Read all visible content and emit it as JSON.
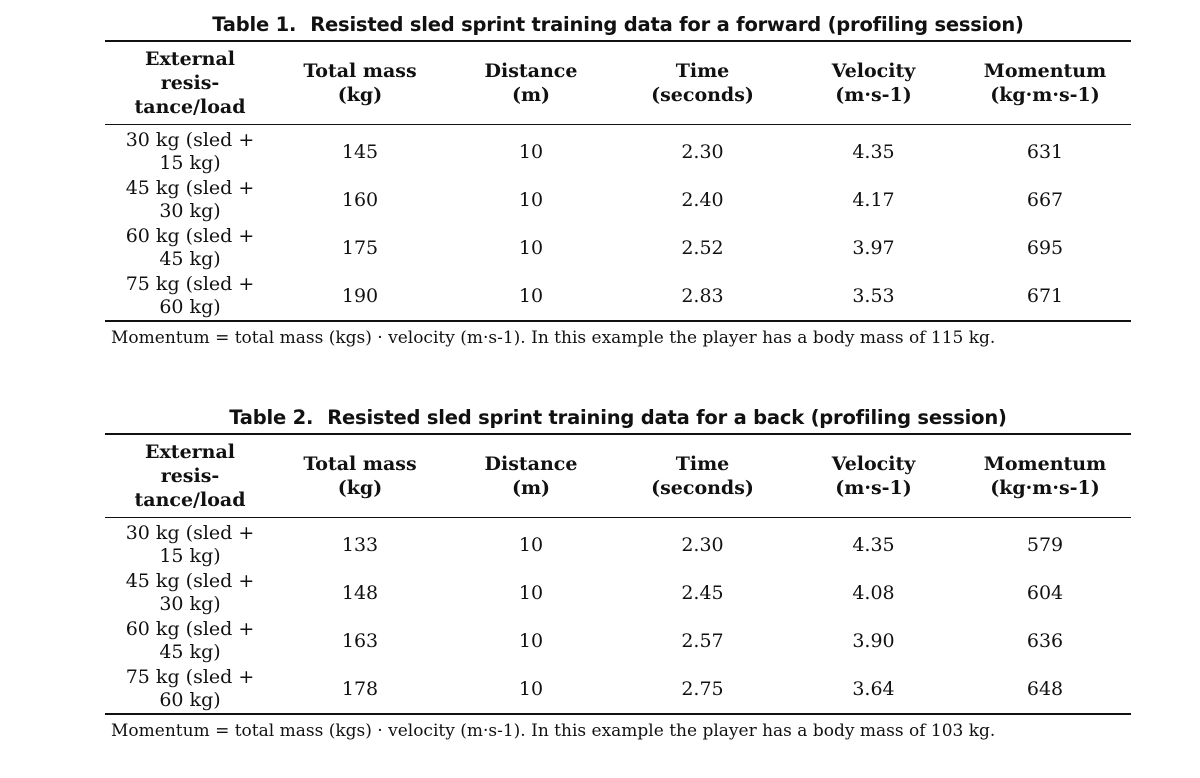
{
  "tables": [
    {
      "caption_num": "Table 1.",
      "caption_text": "Resisted sled sprint training data for a forward (profiling session)",
      "headers": [
        {
          "lines": [
            "External",
            "resis-",
            "tance/load"
          ]
        },
        {
          "lines": [
            "Total mass",
            "(kg)"
          ]
        },
        {
          "lines": [
            "Distance",
            "(m)"
          ]
        },
        {
          "lines": [
            "Time",
            "(seconds)"
          ]
        },
        {
          "lines": [
            "Velocity",
            "(m·s-1)"
          ]
        },
        {
          "lines": [
            "Momentum",
            "(kg·m·s-1)"
          ]
        }
      ],
      "rows": [
        {
          "load_1": "30 kg (sled +",
          "load_2": "15 kg)",
          "total_mass": "145",
          "distance": "10",
          "time": "2.30",
          "velocity": "4.35",
          "momentum": "631"
        },
        {
          "load_1": "45 kg (sled +",
          "load_2": "30 kg)",
          "total_mass": "160",
          "distance": "10",
          "time": "2.40",
          "velocity": "4.17",
          "momentum": "667"
        },
        {
          "load_1": "60 kg (sled +",
          "load_2": "45 kg)",
          "total_mass": "175",
          "distance": "10",
          "time": "2.52",
          "velocity": "3.97",
          "momentum": "695"
        },
        {
          "load_1": "75 kg (sled +",
          "load_2": "60 kg)",
          "total_mass": "190",
          "distance": "10",
          "time": "2.83",
          "velocity": "3.53",
          "momentum": "671"
        }
      ],
      "note": "Momentum = total mass (kgs) · velocity (m·s-1). In this example the player has a body mass of 115 kg."
    },
    {
      "caption_num": "Table 2.",
      "caption_text": "Resisted sled sprint training data for a back (profiling session)",
      "headers": [
        {
          "lines": [
            "External",
            "resis-",
            "tance/load"
          ]
        },
        {
          "lines": [
            "Total mass",
            "(kg)"
          ]
        },
        {
          "lines": [
            "Distance",
            "(m)"
          ]
        },
        {
          "lines": [
            "Time",
            "(seconds)"
          ]
        },
        {
          "lines": [
            "Velocity",
            "(m·s-1)"
          ]
        },
        {
          "lines": [
            "Momentum",
            "(kg·m·s-1)"
          ]
        }
      ],
      "rows": [
        {
          "load_1": "30 kg (sled +",
          "load_2": "15 kg)",
          "total_mass": "133",
          "distance": "10",
          "time": "2.30",
          "velocity": "4.35",
          "momentum": "579"
        },
        {
          "load_1": "45 kg (sled +",
          "load_2": "30 kg)",
          "total_mass": "148",
          "distance": "10",
          "time": "2.45",
          "velocity": "4.08",
          "momentum": "604"
        },
        {
          "load_1": "60 kg (sled +",
          "load_2": "45 kg)",
          "total_mass": "163",
          "distance": "10",
          "time": "2.57",
          "velocity": "3.90",
          "momentum": "636"
        },
        {
          "load_1": "75 kg (sled +",
          "load_2": "60 kg)",
          "total_mass": "178",
          "distance": "10",
          "time": "2.75",
          "velocity": "3.64",
          "momentum": "648"
        }
      ],
      "note": "Momentum = total mass (kgs) · velocity (m·s-1). In this example the player has a body mass of 103 kg."
    }
  ]
}
